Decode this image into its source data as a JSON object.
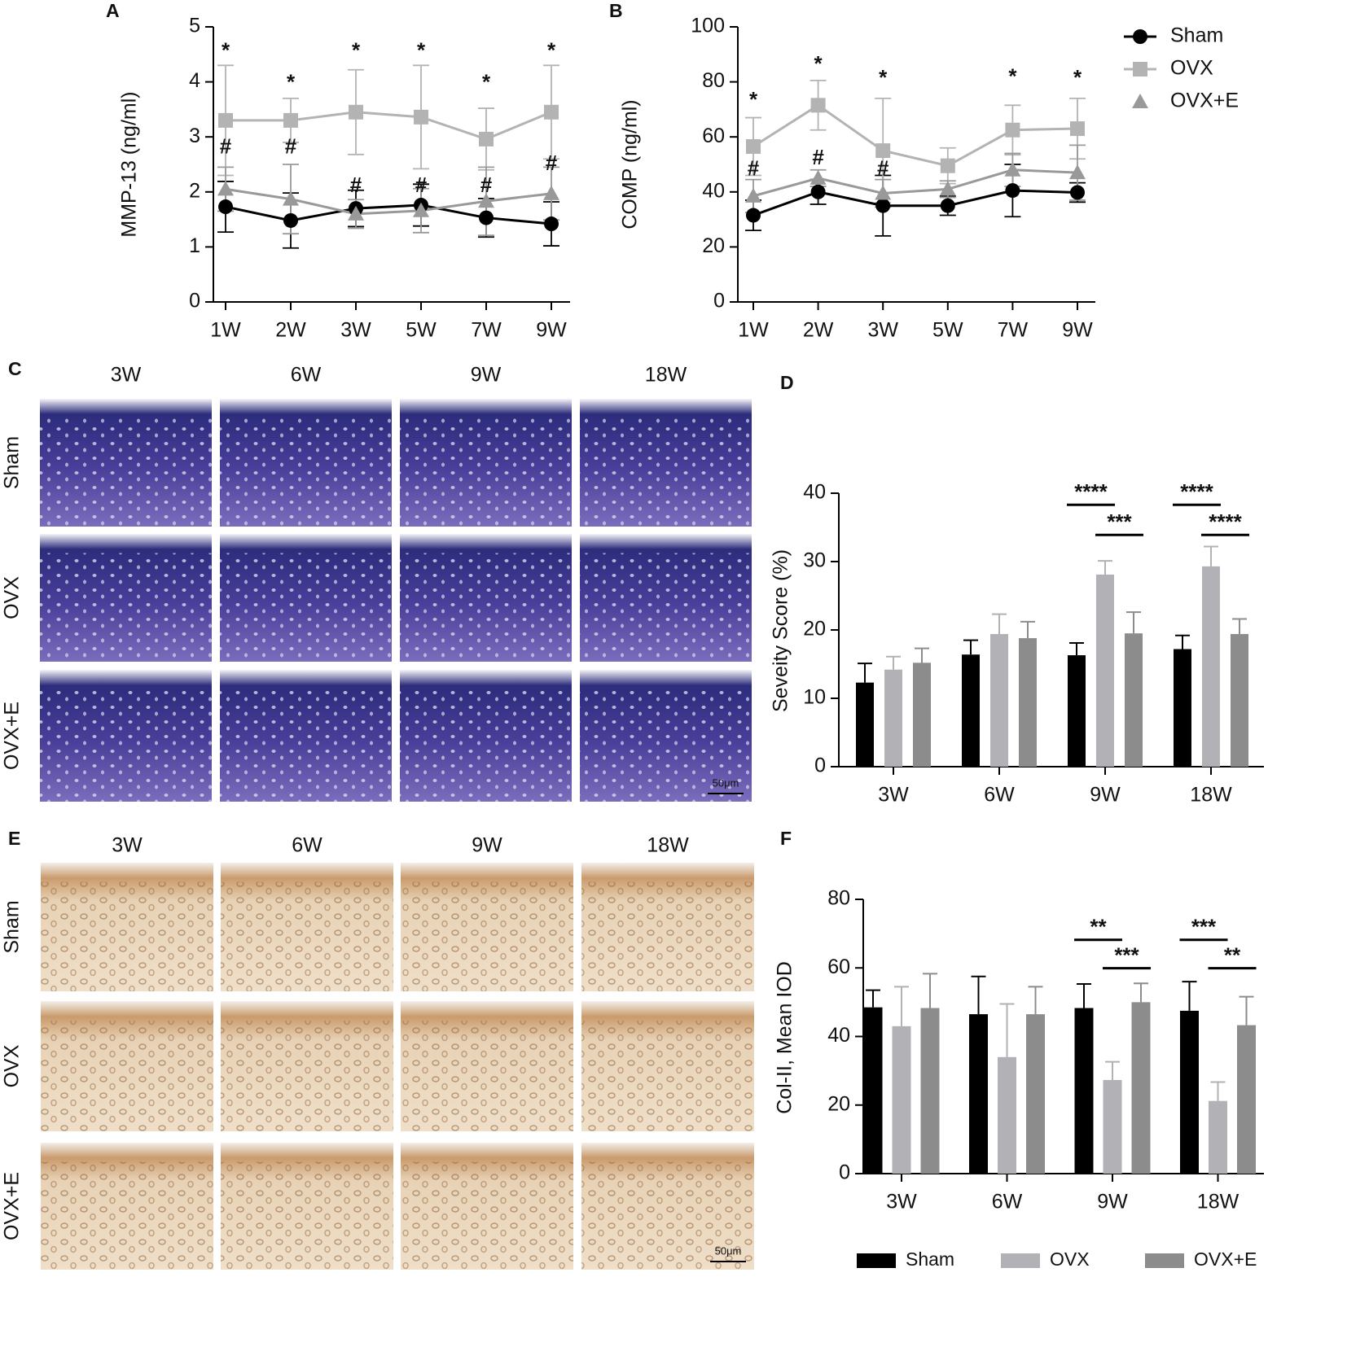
{
  "chart_data": [
    {
      "type": "line",
      "panel": "A",
      "ylabel": "MMP-13  (ng/ml)",
      "categories": [
        "1W",
        "2W",
        "3W",
        "5W",
        "7W",
        "9W"
      ],
      "ylim": [
        0,
        5
      ],
      "yticks": [
        0,
        1,
        2,
        3,
        4,
        5
      ],
      "series": [
        {
          "color": "#000000",
          "marker": "circle",
          "values": [
            1.73,
            1.48,
            1.7,
            1.76,
            1.53,
            1.42
          ],
          "errors": [
            0.46,
            0.5,
            0.33,
            0.38,
            0.35,
            0.4
          ]
        },
        {
          "color": "#b3b3b3",
          "marker": "square",
          "values": [
            3.3,
            3.3,
            3.45,
            3.36,
            2.96,
            3.45
          ],
          "errors": [
            1.0,
            0.4,
            0.77,
            0.94,
            0.56,
            0.85
          ]
        },
        {
          "color": "#999999",
          "marker": "triangle",
          "values": [
            2.05,
            1.87,
            1.6,
            1.66,
            1.83,
            1.97
          ],
          "errors": [
            0.4,
            0.63,
            0.26,
            0.4,
            0.62,
            0.48
          ]
        }
      ],
      "annotations": [
        {
          "text": "*",
          "category": "1W",
          "y": 4.55
        },
        {
          "text": "*",
          "category": "2W",
          "y": 3.97
        },
        {
          "text": "*",
          "category": "3W",
          "y": 4.55
        },
        {
          "text": "*",
          "category": "5W",
          "y": 4.55
        },
        {
          "text": "*",
          "category": "7W",
          "y": 3.97
        },
        {
          "text": "*",
          "category": "9W",
          "y": 4.55
        },
        {
          "text": "#",
          "category": "1W",
          "y": 2.8
        },
        {
          "text": "#",
          "category": "2W",
          "y": 2.8
        },
        {
          "text": "#",
          "category": "3W",
          "y": 2.1
        },
        {
          "text": "#",
          "category": "5W",
          "y": 2.1
        },
        {
          "text": "#",
          "category": "7W",
          "y": 2.1
        },
        {
          "text": "#",
          "category": "9W",
          "y": 2.5
        }
      ]
    },
    {
      "type": "line",
      "panel": "B",
      "ylabel": "COMP  (ng/ml)",
      "legend": "right",
      "categories": [
        "1W",
        "2W",
        "3W",
        "5W",
        "7W",
        "9W"
      ],
      "ylim": [
        0,
        100
      ],
      "yticks": [
        0,
        20,
        40,
        60,
        80,
        100
      ],
      "series": [
        {
          "name": "Sham",
          "color": "#000000",
          "marker": "circle",
          "values": [
            31.5,
            40,
            35,
            35,
            40.5,
            39.8
          ],
          "errors": [
            5.5,
            4.5,
            11,
            3.5,
            9.5,
            3.5
          ]
        },
        {
          "name": "OVX",
          "color": "#b3b3b3",
          "marker": "square",
          "values": [
            56.5,
            71.5,
            55,
            49.5,
            62.5,
            63
          ],
          "errors": [
            10.5,
            9,
            19,
            6.5,
            9,
            11
          ]
        },
        {
          "name": "OVX+E",
          "color": "#999999",
          "marker": "triangle",
          "values": [
            38.5,
            45,
            39.5,
            41,
            48,
            47
          ],
          "errors": [
            6,
            3,
            5,
            3,
            6,
            10
          ]
        }
      ],
      "annotations": [
        {
          "text": "*",
          "category": "1W",
          "y": 73
        },
        {
          "text": "*",
          "category": "2W",
          "y": 86
        },
        {
          "text": "*",
          "category": "3W",
          "y": 81
        },
        {
          "text": "*",
          "category": "7W",
          "y": 81.5
        },
        {
          "text": "*",
          "category": "9W",
          "y": 81
        },
        {
          "text": "#",
          "category": "1W",
          "y": 48
        },
        {
          "text": "#",
          "category": "2W",
          "y": 52
        },
        {
          "text": "#",
          "category": "3W",
          "y": 48
        }
      ]
    },
    {
      "type": "bar",
      "panel": "D",
      "ylabel": "Seveity Score (%)",
      "categories": [
        "3W",
        "6W",
        "9W",
        "18W"
      ],
      "ylim": [
        0,
        40
      ],
      "yticks": [
        0,
        10,
        20,
        30,
        40
      ],
      "series": [
        {
          "color": "#000000",
          "values": [
            12.3,
            16.4,
            16.3,
            17.2
          ],
          "errors": [
            2.8,
            2.1,
            1.8,
            2.0
          ]
        },
        {
          "color": "#b1b1b6",
          "values": [
            14.2,
            19.4,
            28.1,
            29.3
          ],
          "errors": [
            1.9,
            2.9,
            2.0,
            2.9
          ]
        },
        {
          "color": "#8c8c8c",
          "values": [
            15.2,
            18.8,
            19.5,
            19.4
          ],
          "errors": [
            2.1,
            2.4,
            3.1,
            2.2
          ]
        }
      ],
      "brackets": [
        {
          "text": "****",
          "category": "9W",
          "from": 0,
          "to": 1,
          "y": 38.3
        },
        {
          "text": "***",
          "category": "9W",
          "from": 1,
          "to": 2,
          "y": 33.9
        },
        {
          "text": "****",
          "category": "18W",
          "from": 0,
          "to": 1,
          "y": 38.3
        },
        {
          "text": "****",
          "category": "18W",
          "from": 1,
          "to": 2,
          "y": 33.9
        }
      ]
    },
    {
      "type": "bar",
      "panel": "F",
      "ylabel": "Col-II, Mean IOD",
      "legend": "bottom",
      "categories": [
        "3W",
        "6W",
        "9W",
        "18W"
      ],
      "ylim": [
        0,
        80
      ],
      "yticks": [
        0,
        20,
        40,
        60,
        80
      ],
      "series": [
        {
          "name": "Sham",
          "color": "#000000",
          "values": [
            48.5,
            46.5,
            48.3,
            47.5
          ],
          "errors": [
            5,
            11,
            7,
            8.5
          ]
        },
        {
          "name": "OVX",
          "color": "#b1b1b6",
          "values": [
            43,
            34,
            27.3,
            21.2
          ],
          "errors": [
            11.5,
            15.5,
            5.3,
            5.5
          ]
        },
        {
          "name": "OVX+E",
          "color": "#8c8c8c",
          "values": [
            48.3,
            46.5,
            50,
            43.3
          ],
          "errors": [
            10,
            8,
            5.5,
            8.3
          ]
        }
      ],
      "brackets": [
        {
          "text": "**",
          "category": "9W",
          "from": 0,
          "to": 1,
          "y": 68.2
        },
        {
          "text": "***",
          "category": "9W",
          "from": 1,
          "to": 2,
          "y": 59.9
        },
        {
          "text": "***",
          "category": "18W",
          "from": 0,
          "to": 1,
          "y": 68.2
        },
        {
          "text": "**",
          "category": "18W",
          "from": 1,
          "to": 2,
          "y": 59.9
        }
      ]
    }
  ],
  "images": [
    {
      "panel": "C",
      "columns": [
        "3W",
        "6W",
        "9W",
        "18W"
      ],
      "rows": [
        "Sham",
        "OVX",
        "OVX+E"
      ],
      "scale_bar": "50μm"
    },
    {
      "panel": "E",
      "columns": [
        "3W",
        "6W",
        "9W",
        "18W"
      ],
      "rows": [
        "Sham",
        "OVX",
        "OVX+E"
      ],
      "scale_bar": "50μm"
    }
  ]
}
